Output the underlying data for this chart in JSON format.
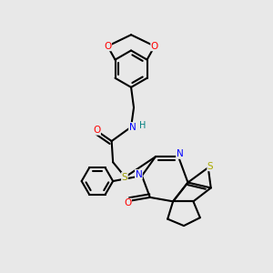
{
  "bg_color": "#e8e8e8",
  "atom_colors": {
    "C": "#000000",
    "N": "#0000ff",
    "O": "#ff0000",
    "S": "#cccc00",
    "H": "#008080"
  },
  "bond_color": "#000000",
  "lw": 1.5
}
